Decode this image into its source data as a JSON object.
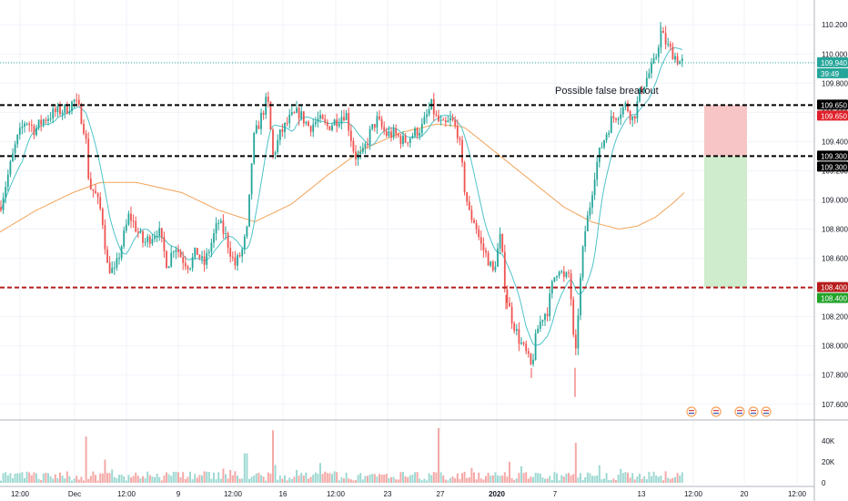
{
  "chart_data": {
    "type": "candlestick",
    "annotation": "Possible false breakout",
    "price_axis": {
      "ticks": [
        "110.200",
        "110.000",
        "109.800",
        "109.600",
        "109.400",
        "109.200",
        "109.000",
        "108.800",
        "108.600",
        "108.400",
        "108.200",
        "108.000",
        "107.800",
        "107.600"
      ],
      "range": [
        107.53,
        110.32
      ]
    },
    "volume_axis": {
      "ticks": [
        "40K",
        "20K",
        "0"
      ],
      "range": [
        0,
        52000
      ]
    },
    "time_axis": {
      "labels": [
        {
          "text": "12:00",
          "bold": false
        },
        {
          "text": "Dec",
          "bold": false
        },
        {
          "text": "12:00",
          "bold": false
        },
        {
          "text": "9",
          "bold": false
        },
        {
          "text": "12:00",
          "bold": false
        },
        {
          "text": "16",
          "bold": false
        },
        {
          "text": "12:00",
          "bold": false
        },
        {
          "text": "23",
          "bold": false
        },
        {
          "text": "27",
          "bold": false
        },
        {
          "text": "2020",
          "bold": true
        },
        {
          "text": "7",
          "bold": false
        },
        {
          "text": "13",
          "bold": false
        },
        {
          "text": "12:00",
          "bold": false
        },
        {
          "text": "20",
          "bold": false
        },
        {
          "text": "12:00",
          "bold": false
        }
      ]
    },
    "levels": [
      {
        "value": 109.65,
        "label": "109.650",
        "style": "dashed",
        "color": "#000000",
        "badges": [
          {
            "text": "109.650",
            "bg": "#000000",
            "fg": "#ffffff"
          },
          {
            "text": "109.650",
            "bg": "#e0202a",
            "fg": "#ffffff"
          }
        ]
      },
      {
        "value": 109.3,
        "label": "109.300",
        "style": "dashed",
        "color": "#000000",
        "badges": [
          {
            "text": "109.300",
            "bg": "#000000",
            "fg": "#ffffff"
          },
          {
            "text": "109.300",
            "bg": "#000000",
            "fg": "#ffffff"
          }
        ]
      },
      {
        "value": 108.4,
        "label": "108.400",
        "style": "dashed",
        "color": "#b71c1c",
        "badges": [
          {
            "text": "108.400",
            "bg": "#b71c1c",
            "fg": "#ffffff"
          },
          {
            "text": "108.400",
            "bg": "#22a32a",
            "fg": "#ffffff"
          }
        ]
      }
    ],
    "last_price": {
      "value": 109.94,
      "label": "109.940",
      "countdown": "39:49",
      "color": "#26a69a"
    },
    "position": {
      "entry": 109.3,
      "stop": 109.65,
      "target": 108.4,
      "risk_color": "#f7c5c5",
      "reward_color": "#cfeccc"
    },
    "ma_fast_color": "#4ec3c8",
    "ma_slow_color": "#f2a45a",
    "up_color": "#26a69a",
    "down_color": "#ef5350",
    "keypoints": [
      [
        0,
        108.95
      ],
      [
        10,
        109.2
      ],
      [
        18,
        109.4
      ],
      [
        28,
        109.55
      ],
      [
        38,
        109.48
      ],
      [
        48,
        109.55
      ],
      [
        60,
        109.6
      ],
      [
        72,
        109.62
      ],
      [
        82,
        109.68
      ],
      [
        88,
        109.6
      ],
      [
        94,
        109.45
      ],
      [
        98,
        109.1
      ],
      [
        104,
        109.05
      ],
      [
        112,
        108.9
      ],
      [
        118,
        108.55
      ],
      [
        126,
        108.5
      ],
      [
        134,
        108.7
      ],
      [
        142,
        108.9
      ],
      [
        150,
        108.8
      ],
      [
        158,
        108.7
      ],
      [
        166,
        108.75
      ],
      [
        174,
        108.8
      ],
      [
        184,
        108.55
      ],
      [
        192,
        108.7
      ],
      [
        200,
        108.6
      ],
      [
        208,
        108.55
      ],
      [
        216,
        108.65
      ],
      [
        224,
        108.55
      ],
      [
        232,
        108.7
      ],
      [
        240,
        108.85
      ],
      [
        248,
        108.75
      ],
      [
        258,
        108.55
      ],
      [
        266,
        108.65
      ],
      [
        272,
        108.8
      ],
      [
        278,
        109.4
      ],
      [
        286,
        109.55
      ],
      [
        294,
        109.7
      ],
      [
        300,
        109.3
      ],
      [
        308,
        109.45
      ],
      [
        318,
        109.55
      ],
      [
        328,
        109.6
      ],
      [
        340,
        109.5
      ],
      [
        350,
        109.55
      ],
      [
        360,
        109.5
      ],
      [
        370,
        109.55
      ],
      [
        380,
        109.6
      ],
      [
        390,
        109.3
      ],
      [
        398,
        109.3
      ],
      [
        406,
        109.45
      ],
      [
        414,
        109.55
      ],
      [
        424,
        109.45
      ],
      [
        434,
        109.45
      ],
      [
        444,
        109.4
      ],
      [
        454,
        109.45
      ],
      [
        464,
        109.5
      ],
      [
        474,
        109.65
      ],
      [
        480,
        109.55
      ],
      [
        488,
        109.5
      ],
      [
        496,
        109.55
      ],
      [
        504,
        109.45
      ],
      [
        510,
        109.1
      ],
      [
        516,
        108.9
      ],
      [
        522,
        108.85
      ],
      [
        528,
        108.7
      ],
      [
        536,
        108.6
      ],
      [
        542,
        108.5
      ],
      [
        550,
        108.75
      ],
      [
        556,
        108.35
      ],
      [
        562,
        108.2
      ],
      [
        570,
        108.05
      ],
      [
        578,
        107.95
      ],
      [
        584,
        107.85
      ],
      [
        590,
        108.1
      ],
      [
        596,
        108.2
      ],
      [
        602,
        108.25
      ],
      [
        608,
        108.45
      ],
      [
        614,
        108.55
      ],
      [
        620,
        108.45
      ],
      [
        626,
        108.5
      ],
      [
        632,
        107.85
      ],
      [
        636,
        108.3
      ],
      [
        642,
        108.75
      ],
      [
        648,
        108.95
      ],
      [
        654,
        109.2
      ],
      [
        660,
        109.35
      ],
      [
        666,
        109.45
      ],
      [
        672,
        109.55
      ],
      [
        680,
        109.6
      ],
      [
        688,
        109.65
      ],
      [
        696,
        109.55
      ],
      [
        704,
        109.75
      ],
      [
        712,
        109.85
      ],
      [
        720,
        109.95
      ],
      [
        726,
        110.15
      ],
      [
        734,
        110.05
      ],
      [
        740,
        110.0
      ],
      [
        746,
        109.95
      ],
      [
        752,
        109.94
      ]
    ],
    "ma_slow_points": [
      [
        0,
        108.78
      ],
      [
        40,
        108.93
      ],
      [
        80,
        109.05
      ],
      [
        110,
        109.12
      ],
      [
        150,
        109.12
      ],
      [
        200,
        109.05
      ],
      [
        240,
        108.93
      ],
      [
        280,
        108.85
      ],
      [
        320,
        108.97
      ],
      [
        360,
        109.17
      ],
      [
        400,
        109.35
      ],
      [
        440,
        109.46
      ],
      [
        480,
        109.52
      ],
      [
        510,
        109.5
      ],
      [
        540,
        109.35
      ],
      [
        580,
        109.15
      ],
      [
        620,
        108.95
      ],
      [
        650,
        108.85
      ],
      [
        680,
        108.8
      ],
      [
        700,
        108.82
      ],
      [
        720,
        108.88
      ],
      [
        740,
        108.98
      ],
      [
        752,
        109.05
      ]
    ],
    "volume_spikes": [
      [
        95,
        44000
      ],
      [
        301,
        50000
      ],
      [
        482,
        52000
      ],
      [
        632,
        38000
      ],
      [
        116,
        22000
      ],
      [
        270,
        28000
      ],
      [
        560,
        20000
      ]
    ]
  }
}
